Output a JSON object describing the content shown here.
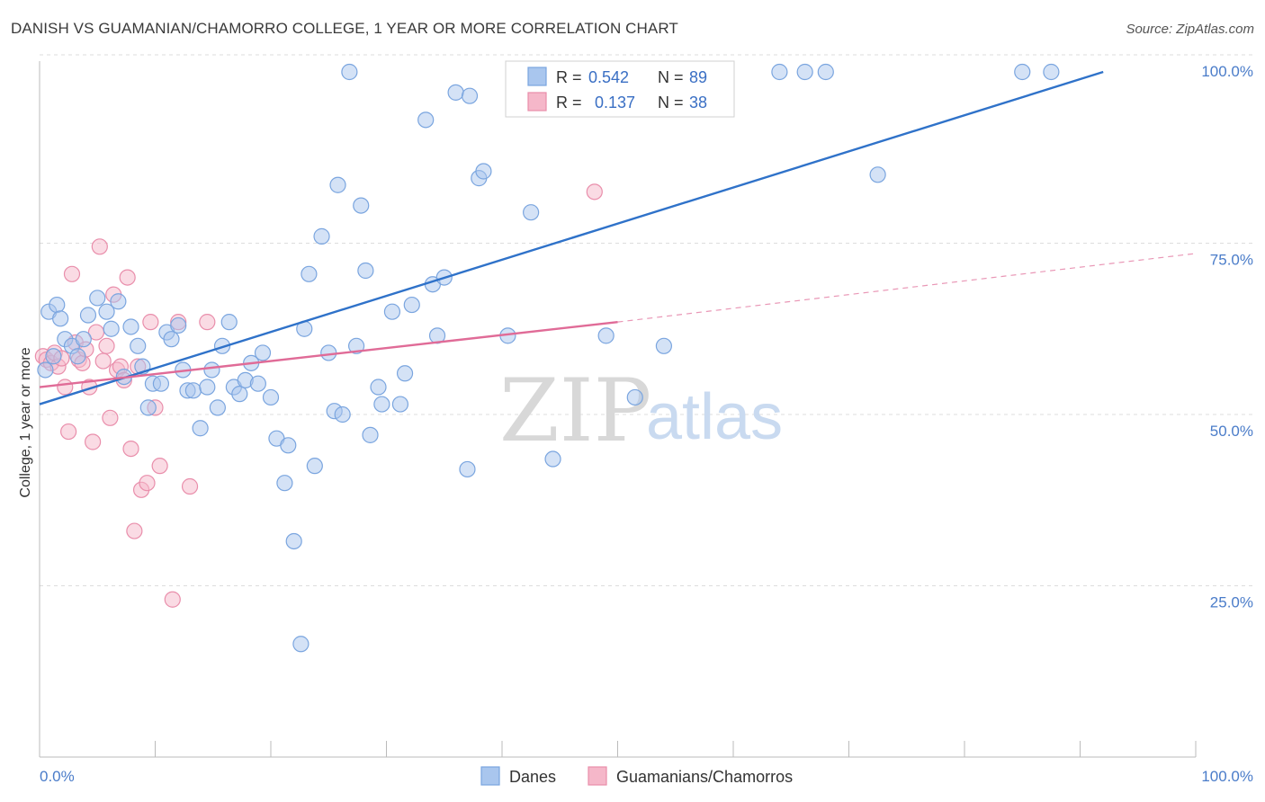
{
  "header": {
    "title": "DANISH VS GUAMANIAN/CHAMORRO COLLEGE, 1 YEAR OR MORE CORRELATION CHART",
    "source": "Source: ZipAtlas.com"
  },
  "watermark": {
    "zip": "ZIP",
    "atlas": "atlas"
  },
  "legend": {
    "rows": [
      {
        "r_label": "R =",
        "r_value": "0.542",
        "n_label": "N =",
        "n_value": "89"
      },
      {
        "r_label": "R =",
        "r_value": "0.137",
        "n_label": "N =",
        "n_value": "38"
      }
    ]
  },
  "bottom_legend": [
    "Danes",
    "Guamanians/Chamorros"
  ],
  "colors": {
    "danes_fill": "#a9c6ee",
    "danes_stroke": "#7aa5df",
    "danes_line": "#2f72c9",
    "guam_fill": "#f5b7c9",
    "guam_stroke": "#e98eab",
    "guam_line": "#e06b97",
    "grid": "#dddddd",
    "axis_label": "#4a7cc9"
  },
  "chart_data": {
    "type": "scatter",
    "title": "DANISH VS GUAMANIAN/CHAMORRO COLLEGE, 1 YEAR OR MORE CORRELATION CHART",
    "xlabel": "",
    "ylabel": "College, 1 year or more",
    "xlim": [
      0,
      100
    ],
    "ylim": [
      0,
      102
    ],
    "x_tick_labels": [
      "0.0%",
      "100.0%"
    ],
    "y_ticks": [
      25,
      50,
      75,
      100
    ],
    "y_tick_labels": [
      "25.0%",
      "50.0%",
      "75.0%",
      "100.0%"
    ],
    "grid": true,
    "legend_position": "top-center",
    "series": [
      {
        "name": "Danes",
        "R": 0.542,
        "N": 89,
        "trend": {
          "x": [
            0,
            92
          ],
          "y": [
            51.5,
            100
          ]
        },
        "points": [
          [
            0.5,
            56.5
          ],
          [
            0.8,
            65.0
          ],
          [
            1.2,
            58.5
          ],
          [
            1.5,
            66.0
          ],
          [
            1.8,
            64.0
          ],
          [
            2.2,
            61.0
          ],
          [
            2.8,
            60.0
          ],
          [
            3.3,
            58.5
          ],
          [
            3.8,
            61.0
          ],
          [
            4.2,
            64.5
          ],
          [
            5.0,
            67.0
          ],
          [
            5.8,
            65.0
          ],
          [
            6.2,
            62.5
          ],
          [
            6.8,
            66.5
          ],
          [
            7.3,
            55.5
          ],
          [
            7.9,
            62.8
          ],
          [
            8.5,
            60.0
          ],
          [
            8.9,
            57.0
          ],
          [
            9.4,
            51.0
          ],
          [
            9.8,
            54.5
          ],
          [
            10.5,
            54.5
          ],
          [
            11.0,
            62.0
          ],
          [
            11.4,
            61.0
          ],
          [
            12.0,
            63.0
          ],
          [
            12.4,
            56.5
          ],
          [
            12.8,
            53.5
          ],
          [
            13.3,
            53.5
          ],
          [
            13.9,
            48.0
          ],
          [
            14.5,
            54.0
          ],
          [
            14.9,
            56.5
          ],
          [
            15.4,
            51.0
          ],
          [
            15.8,
            60.0
          ],
          [
            16.4,
            63.5
          ],
          [
            16.8,
            54.0
          ],
          [
            17.3,
            53.0
          ],
          [
            17.8,
            55.0
          ],
          [
            18.3,
            57.5
          ],
          [
            18.9,
            54.5
          ],
          [
            19.3,
            59.0
          ],
          [
            20.0,
            52.5
          ],
          [
            20.5,
            46.5
          ],
          [
            21.2,
            40.0
          ],
          [
            21.5,
            45.5
          ],
          [
            22.0,
            31.5
          ],
          [
            22.6,
            16.5
          ],
          [
            22.9,
            62.5
          ],
          [
            23.3,
            70.5
          ],
          [
            23.8,
            42.5
          ],
          [
            24.4,
            76.0
          ],
          [
            25.0,
            59.0
          ],
          [
            25.5,
            50.5
          ],
          [
            25.8,
            83.5
          ],
          [
            26.2,
            50.0
          ],
          [
            26.8,
            100.0
          ],
          [
            27.4,
            60.0
          ],
          [
            27.8,
            80.5
          ],
          [
            28.2,
            71.0
          ],
          [
            28.6,
            47.0
          ],
          [
            29.3,
            54.0
          ],
          [
            29.6,
            51.5
          ],
          [
            30.5,
            65.0
          ],
          [
            31.2,
            51.5
          ],
          [
            31.6,
            56.0
          ],
          [
            32.2,
            66.0
          ],
          [
            33.4,
            93.0
          ],
          [
            34.0,
            69.0
          ],
          [
            34.4,
            61.5
          ],
          [
            35.0,
            70.0
          ],
          [
            36.0,
            97.0
          ],
          [
            37.0,
            42.0
          ],
          [
            37.2,
            96.5
          ],
          [
            38.0,
            84.5
          ],
          [
            38.4,
            85.5
          ],
          [
            40.5,
            61.5
          ],
          [
            41.0,
            100.0
          ],
          [
            42.5,
            79.5
          ],
          [
            43.5,
            100.0
          ],
          [
            44.4,
            43.5
          ],
          [
            49.0,
            61.5
          ],
          [
            51.5,
            52.5
          ],
          [
            52.0,
            100.0
          ],
          [
            54.0,
            60.0
          ],
          [
            58.0,
            100.0
          ],
          [
            64.0,
            100.0
          ],
          [
            66.2,
            100.0
          ],
          [
            68.0,
            100.0
          ],
          [
            72.5,
            85.0
          ],
          [
            85.0,
            100.0
          ],
          [
            87.5,
            100.0
          ]
        ]
      },
      {
        "name": "Guamanians/Chamorros",
        "R": 0.137,
        "N": 38,
        "trend": {
          "x": [
            0,
            50
          ],
          "y": [
            54.0,
            63.5
          ]
        },
        "trend_extension": {
          "x": [
            50,
            100
          ],
          "y": [
            63.5,
            73.5
          ]
        },
        "points": [
          [
            0.3,
            58.5
          ],
          [
            0.6,
            58.0
          ],
          [
            1.0,
            57.5
          ],
          [
            1.3,
            59.0
          ],
          [
            1.6,
            57.0
          ],
          [
            1.9,
            58.2
          ],
          [
            2.2,
            54.0
          ],
          [
            2.5,
            47.5
          ],
          [
            2.8,
            70.5
          ],
          [
            3.1,
            60.5
          ],
          [
            3.4,
            58.0
          ],
          [
            3.7,
            57.5
          ],
          [
            4.0,
            59.5
          ],
          [
            4.3,
            54.0
          ],
          [
            4.6,
            46.0
          ],
          [
            4.9,
            62.0
          ],
          [
            5.2,
            74.5
          ],
          [
            5.5,
            57.8
          ],
          [
            5.8,
            60.0
          ],
          [
            6.1,
            49.5
          ],
          [
            6.4,
            67.5
          ],
          [
            6.7,
            56.5
          ],
          [
            7.0,
            57.0
          ],
          [
            7.3,
            55.0
          ],
          [
            7.6,
            70.0
          ],
          [
            7.9,
            45.0
          ],
          [
            8.2,
            33.0
          ],
          [
            8.5,
            57.0
          ],
          [
            8.8,
            39.0
          ],
          [
            9.3,
            40.0
          ],
          [
            9.6,
            63.5
          ],
          [
            10.0,
            51.0
          ],
          [
            10.4,
            42.5
          ],
          [
            11.5,
            23.0
          ],
          [
            12.0,
            63.5
          ],
          [
            13.0,
            39.5
          ],
          [
            14.5,
            63.5
          ],
          [
            48.0,
            82.5
          ]
        ]
      }
    ]
  }
}
